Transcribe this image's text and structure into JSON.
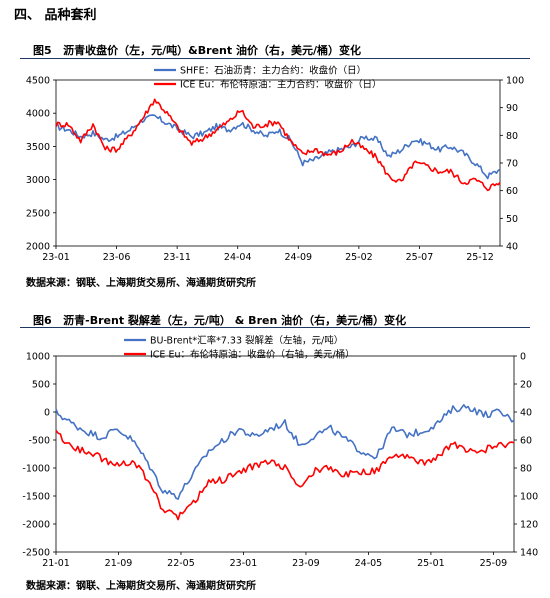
{
  "section_title": "四、 品种套利",
  "chart_data": [
    {
      "type": "line",
      "figure_label": "图5",
      "title": "沥青收盘价（左，元/吨）&Brent 油价（右，美元/桶）变化",
      "x_ticks": [
        "23-01",
        "23-06",
        "23-11",
        "24-04",
        "24-09",
        "25-02",
        "25-07",
        "25-12"
      ],
      "left_axis": {
        "ticks": [
          2000,
          2500,
          3000,
          3500,
          4000,
          4500
        ],
        "range": [
          2000,
          4500
        ],
        "inverted": false
      },
      "right_axis": {
        "ticks": [
          40,
          50,
          60,
          70,
          80,
          90,
          100
        ],
        "range": [
          40,
          100
        ],
        "inverted": false
      },
      "legend_placement": "top-center",
      "grid": false,
      "series": [
        {
          "name": "SHFE：石油沥青：主力合约：收盘价（日）",
          "axis": "left",
          "color": "#4472c4",
          "x": [
            "23-01",
            "23-02",
            "23-03",
            "23-04",
            "23-05",
            "23-06",
            "23-07",
            "23-08",
            "23-09",
            "23-10",
            "23-11",
            "23-12",
            "24-01",
            "24-02",
            "24-03",
            "24-04",
            "24-05",
            "24-06",
            "24-07",
            "24-08",
            "24-09",
            "24-10",
            "24-11",
            "24-12",
            "25-01",
            "25-02",
            "25-03",
            "25-04",
            "25-05",
            "25-06",
            "25-07",
            "25-08",
            "25-09",
            "25-10",
            "25-11",
            "25-12",
            "26-01"
          ],
          "values": [
            3800,
            3750,
            3650,
            3700,
            3600,
            3650,
            3750,
            3900,
            3950,
            3850,
            3750,
            3650,
            3700,
            3800,
            3750,
            3850,
            3750,
            3650,
            3750,
            3600,
            3250,
            3300,
            3400,
            3450,
            3500,
            3650,
            3600,
            3350,
            3450,
            3600,
            3550,
            3450,
            3500,
            3400,
            3250,
            3050,
            3150
          ]
        },
        {
          "name": "ICE Eu：布伦特原油：主力合约：收盘价（日）",
          "axis": "right",
          "color": "#ff0000",
          "x": [
            "23-01",
            "23-02",
            "23-03",
            "23-04",
            "23-05",
            "23-06",
            "23-07",
            "23-08",
            "23-09",
            "23-10",
            "23-11",
            "23-12",
            "24-01",
            "24-02",
            "24-03",
            "24-04",
            "24-05",
            "24-06",
            "24-07",
            "24-08",
            "24-09",
            "24-10",
            "24-11",
            "24-12",
            "25-01",
            "25-02",
            "25-03",
            "25-04",
            "25-05",
            "25-06",
            "25-07",
            "25-08",
            "25-09",
            "25-10",
            "25-11",
            "25-12",
            "26-01"
          ],
          "values": [
            84,
            84,
            78,
            84,
            75,
            75,
            80,
            86,
            93,
            88,
            82,
            77,
            79,
            82,
            85,
            89,
            83,
            84,
            85,
            78,
            73,
            75,
            73,
            74,
            78,
            75,
            72,
            65,
            63,
            70,
            69,
            67,
            67,
            63,
            64,
            61,
            63
          ]
        }
      ]
    },
    {
      "type": "line",
      "figure_label": "图6",
      "title": "沥青-Brent 裂解差（左，元/吨） & Bren 油价（右，美元/桶）变化",
      "x_ticks": [
        "21-01",
        "21-09",
        "22-05",
        "23-01",
        "23-09",
        "24-05",
        "25-01",
        "25-09"
      ],
      "left_axis": {
        "ticks": [
          -2500,
          -2000,
          -1500,
          -1000,
          -500,
          0,
          500,
          1000
        ],
        "range": [
          -2500,
          1000
        ],
        "inverted": false
      },
      "right_axis": {
        "ticks": [
          0,
          20,
          40,
          60,
          80,
          100,
          120,
          140
        ],
        "range": [
          0,
          140
        ],
        "inverted": true
      },
      "legend_placement": "top-center",
      "grid": false,
      "series": [
        {
          "name": "BU-Brent*汇率*7.33 裂解差（左轴，元/吨）",
          "axis": "left",
          "color": "#4472c4",
          "x": [
            "21-01",
            "21-03",
            "21-05",
            "21-07",
            "21-09",
            "21-11",
            "22-01",
            "22-03",
            "22-05",
            "22-07",
            "22-09",
            "22-11",
            "23-01",
            "23-03",
            "23-05",
            "23-07",
            "23-09",
            "23-11",
            "24-01",
            "24-03",
            "24-05",
            "24-07",
            "24-09",
            "24-11",
            "25-01",
            "25-03",
            "25-05",
            "25-07",
            "25-09",
            "25-11",
            "26-01"
          ],
          "values": [
            0,
            -200,
            -350,
            -450,
            -300,
            -500,
            -900,
            -1400,
            -1500,
            -1100,
            -700,
            -500,
            -300,
            -450,
            -300,
            -200,
            -600,
            -400,
            -300,
            -500,
            -700,
            -800,
            -300,
            -400,
            -350,
            -200,
            50,
            100,
            -50,
            0,
            -150
          ]
        },
        {
          "name": "ICE Eu：布伦特原油：收盘价（右轴，美元/桶）",
          "axis": "right",
          "color": "#ff0000",
          "x": [
            "21-01",
            "21-03",
            "21-05",
            "21-07",
            "21-09",
            "21-11",
            "22-01",
            "22-03",
            "22-05",
            "22-07",
            "22-09",
            "22-11",
            "23-01",
            "23-03",
            "23-05",
            "23-07",
            "23-09",
            "23-11",
            "24-01",
            "24-03",
            "24-05",
            "24-07",
            "24-09",
            "24-11",
            "25-01",
            "25-03",
            "25-05",
            "25-07",
            "25-09",
            "25-11",
            "26-01"
          ],
          "values": [
            55,
            65,
            68,
            73,
            78,
            75,
            88,
            110,
            115,
            105,
            90,
            88,
            83,
            78,
            75,
            80,
            93,
            82,
            80,
            85,
            83,
            82,
            72,
            73,
            76,
            72,
            63,
            68,
            67,
            64,
            62
          ]
        }
      ]
    }
  ],
  "source_text": "数据来源：钢联、上海期货交易所、海通期货研究所"
}
